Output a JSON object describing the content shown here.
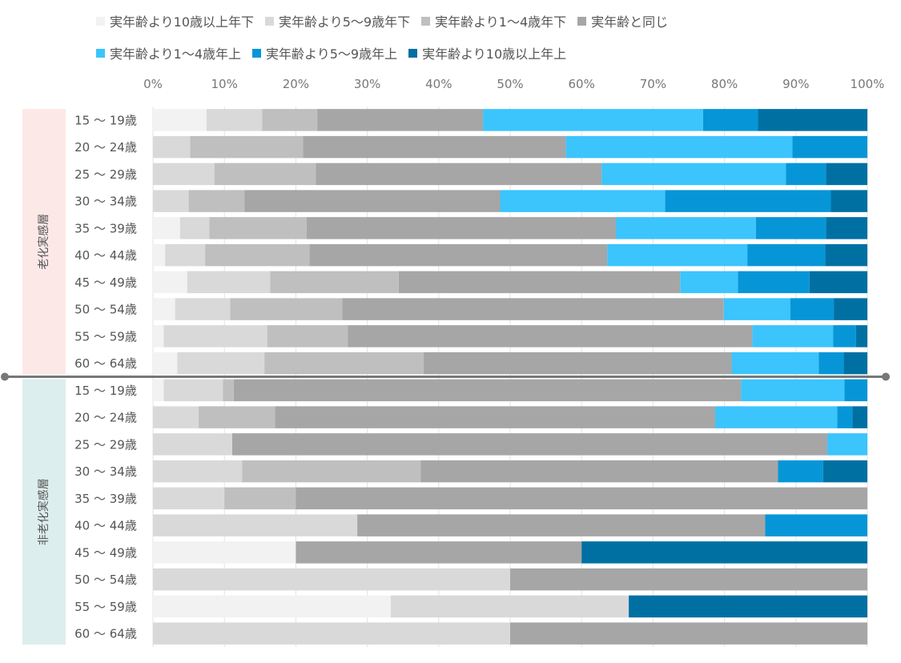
{
  "chart_data": {
    "type": "bar",
    "orientation": "horizontal",
    "stacked": true,
    "percent": true,
    "xlim": [
      0,
      100
    ],
    "xticks": [
      "0%",
      "10%",
      "20%",
      "30%",
      "40%",
      "50%",
      "60%",
      "70%",
      "80%",
      "90%",
      "100%"
    ],
    "grid": true,
    "legend_position": "top",
    "groups": [
      {
        "name": "老化実感層",
        "rows": 10
      },
      {
        "name": "非老化実感層",
        "rows": 10
      }
    ],
    "categories": [
      "15 ～ 19歳",
      "20 ～ 24歳",
      "25 ～ 29歳",
      "30 ～ 34歳",
      "35 ～ 39歳",
      "40 ～ 44歳",
      "45 ～ 49歳",
      "50 ～ 54歳",
      "55 ～ 59歳",
      "60 ～ 64歳",
      "15 ～ 19歳",
      "20 ～ 24歳",
      "25 ～ 29歳",
      "30 ～ 34歳",
      "35 ～ 39歳",
      "40 ～ 44歳",
      "45 ～ 49歳",
      "50 ～ 54歳",
      "55 ～ 59歳",
      "60 ～ 64歳"
    ],
    "series": [
      {
        "name": "実年齢より10歳以上年下",
        "color": "#f2f2f2",
        "values": [
          7.5,
          0,
          0,
          0,
          3.8,
          1.7,
          4.8,
          3.1,
          1.5,
          3.4,
          1.5,
          0,
          0,
          0,
          0,
          0,
          20,
          0,
          33.3,
          0
        ]
      },
      {
        "name": "実年齢より5～9歳年下",
        "color": "#d9d9d9",
        "values": [
          7.8,
          5.2,
          8.6,
          5.0,
          4.1,
          5.6,
          11.6,
          7.7,
          14.5,
          12.2,
          8.3,
          6.4,
          11.1,
          12.5,
          10,
          28.6,
          0,
          50,
          33.3,
          50
        ]
      },
      {
        "name": "実年齢より1～4歳年下",
        "color": "#bfbfbf",
        "values": [
          7.7,
          15.8,
          14.2,
          7.8,
          13.6,
          14.6,
          18.0,
          15.7,
          11.3,
          22.3,
          1.5,
          10.7,
          0,
          25,
          10,
          0,
          0,
          0,
          0,
          0
        ]
      },
      {
        "name": "実年齢と同じ",
        "color": "#a6a6a6",
        "values": [
          23.2,
          36.8,
          40.0,
          35.8,
          43.3,
          41.7,
          39.4,
          53.4,
          56.6,
          43.1,
          71.0,
          61.6,
          83.3,
          50,
          80,
          57.1,
          40,
          50,
          0,
          50
        ]
      },
      {
        "name": "実年齢より1～4歳年上",
        "color": "#3cc4fc",
        "values": [
          30.8,
          31.7,
          25.8,
          23.1,
          19.6,
          19.6,
          8.1,
          9.3,
          11.3,
          12.2,
          14.5,
          17.1,
          5.6,
          0,
          0,
          0,
          0,
          0,
          0,
          0
        ]
      },
      {
        "name": "実年齢より5～9歳年上",
        "color": "#0696d7",
        "values": [
          7.7,
          10.5,
          5.6,
          23.2,
          9.8,
          10.9,
          10.0,
          6.1,
          3.2,
          3.5,
          3.2,
          2.1,
          0,
          6.3,
          0,
          14.3,
          0,
          0,
          0,
          0
        ]
      },
      {
        "name": "実年齢より10歳以上年上",
        "color": "#0070a3",
        "values": [
          15.3,
          0,
          5.8,
          5.1,
          5.8,
          5.9,
          8.1,
          4.7,
          1.6,
          3.3,
          0,
          2.1,
          0,
          6.2,
          0,
          0,
          40,
          0,
          33.4,
          0
        ]
      }
    ]
  }
}
